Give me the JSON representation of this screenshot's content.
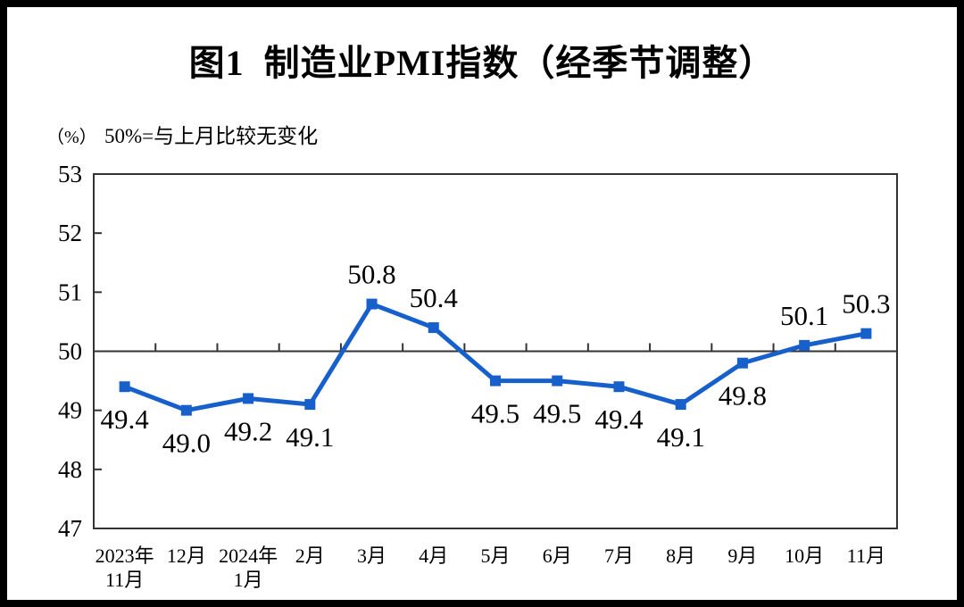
{
  "chart_data": {
    "type": "line",
    "title": "图1  制造业PMI指数（经季节调整）",
    "unit_label": "（%）",
    "note": "50%=与上月比较无变化",
    "categories": [
      [
        "2023年",
        "11月"
      ],
      [
        "12月"
      ],
      [
        "2024年",
        "1月"
      ],
      [
        "2月"
      ],
      [
        "3月"
      ],
      [
        "4月"
      ],
      [
        "5月"
      ],
      [
        "6月"
      ],
      [
        "7月"
      ],
      [
        "8月"
      ],
      [
        "9月"
      ],
      [
        "10月"
      ],
      [
        "11月"
      ]
    ],
    "values": [
      49.4,
      49.0,
      49.2,
      49.1,
      50.8,
      50.4,
      49.5,
      49.5,
      49.4,
      49.1,
      49.8,
      50.1,
      50.3
    ],
    "data_labels": [
      "49.4",
      "49.0",
      "49.2",
      "49.1",
      "50.8",
      "50.4",
      "49.5",
      "49.5",
      "49.4",
      "49.1",
      "49.8",
      "50.1",
      "50.3"
    ],
    "ylim": [
      47,
      53
    ],
    "yticks": [
      47,
      48,
      49,
      50,
      51,
      52,
      53
    ],
    "reference_line": 50,
    "grid": false,
    "legend": false,
    "line_color": "#1760CC",
    "marker": "square",
    "axis_color": "#333333"
  }
}
